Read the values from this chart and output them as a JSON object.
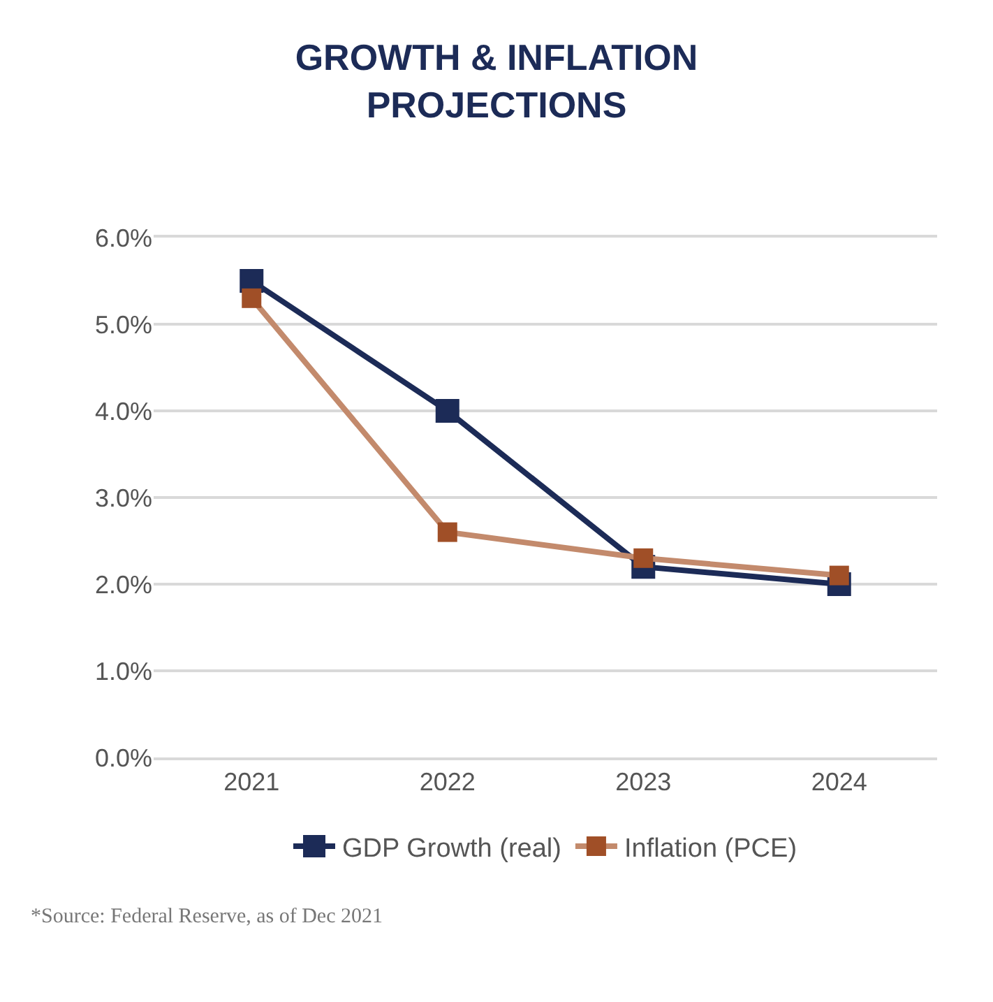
{
  "chart_data": {
    "type": "line",
    "title": "GROWTH & INFLATION\nPROJECTIONS",
    "categories": [
      "2021",
      "2022",
      "2023",
      "2024"
    ],
    "series": [
      {
        "name": "GDP Growth (real)",
        "color": "#1c2b57",
        "values": [
          5.5,
          4.0,
          2.2,
          2.0
        ]
      },
      {
        "name": "Inflation (PCE)",
        "color": "#c38a6c",
        "colors": [
          "#a04f27",
          "#a04f27",
          "#a04f27",
          "#a04f27"
        ],
        "values": [
          5.3,
          2.6,
          2.3,
          2.1
        ]
      }
    ],
    "ylim": [
      0,
      6
    ],
    "yticks": [
      {
        "value": 0,
        "label": "0.0%"
      },
      {
        "value": 1,
        "label": "1.0%"
      },
      {
        "value": 2,
        "label": "2.0%"
      },
      {
        "value": 3,
        "label": "3.0%"
      },
      {
        "value": 4,
        "label": "4.0%"
      },
      {
        "value": 5,
        "label": "5.0%"
      },
      {
        "value": 6,
        "label": "6.0%"
      }
    ],
    "grid": "y",
    "legend": "bottom",
    "marker": "square",
    "line_style": "solid",
    "annotations": [
      "*Source: Federal Reserve, as of Dec 2021"
    ]
  }
}
